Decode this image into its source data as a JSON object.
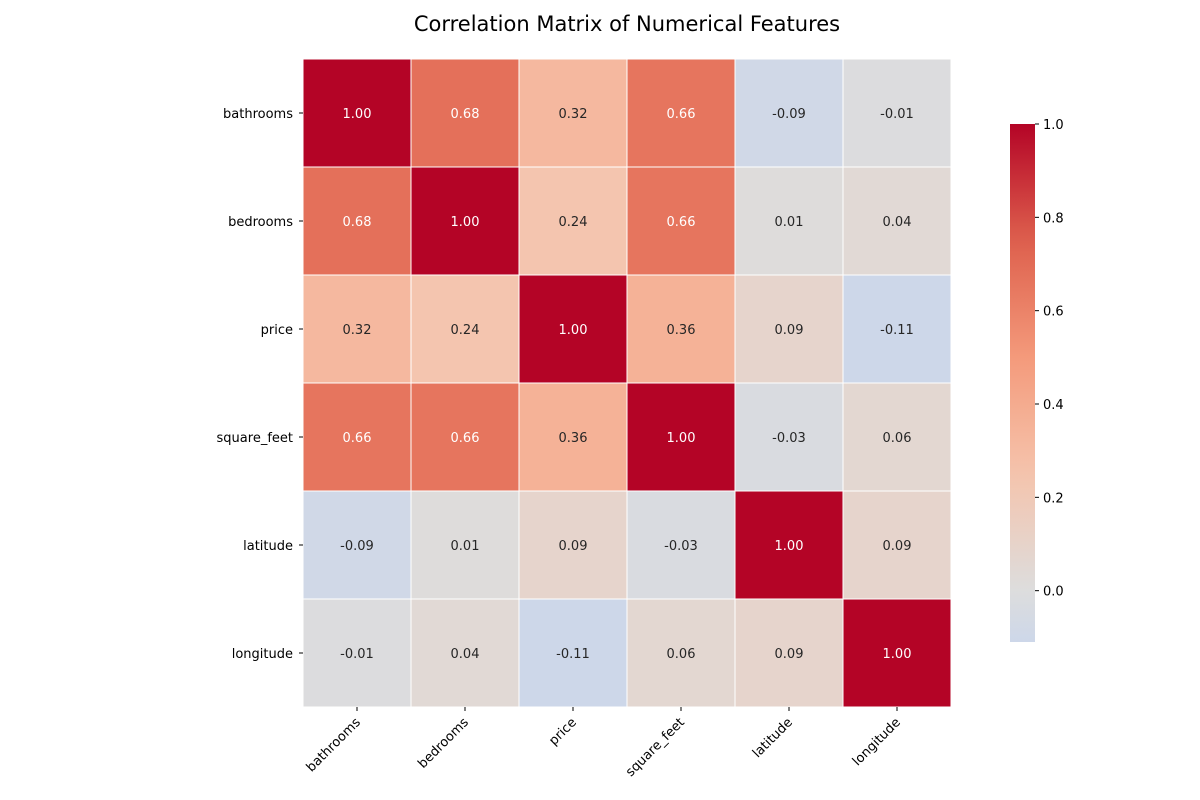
{
  "chart_data": {
    "type": "heatmap",
    "title": "Correlation Matrix of Numerical Features",
    "xlabel": "",
    "ylabel": "",
    "rows": [
      "bathrooms",
      "bedrooms",
      "price",
      "square_feet",
      "latitude",
      "longitude"
    ],
    "columns": [
      "bathrooms",
      "bedrooms",
      "price",
      "square_feet",
      "latitude",
      "longitude"
    ],
    "values": [
      [
        1.0,
        0.68,
        0.32,
        0.66,
        -0.09,
        -0.01
      ],
      [
        0.68,
        1.0,
        0.24,
        0.66,
        0.01,
        0.04
      ],
      [
        0.32,
        0.24,
        1.0,
        0.36,
        0.09,
        -0.11
      ],
      [
        0.66,
        0.66,
        0.36,
        1.0,
        -0.03,
        0.06
      ],
      [
        -0.09,
        0.01,
        0.09,
        -0.03,
        1.0,
        0.09
      ],
      [
        -0.01,
        0.04,
        -0.11,
        0.06,
        0.09,
        1.0
      ]
    ],
    "value_format": "0.00",
    "colormap": "coolwarm",
    "colorbar": {
      "range": [
        -0.11,
        1.0
      ],
      "ticks": [
        0.0,
        0.2,
        0.4,
        0.6,
        0.8,
        1.0
      ],
      "tick_labels": [
        "0.0",
        "0.2",
        "0.4",
        "0.6",
        "0.8",
        "1.0"
      ],
      "placement": "right"
    },
    "grid": false,
    "cell_border_color": "#ffffff",
    "annotation_light_color": "#ffffff",
    "annotation_dark_color": "#262626"
  }
}
